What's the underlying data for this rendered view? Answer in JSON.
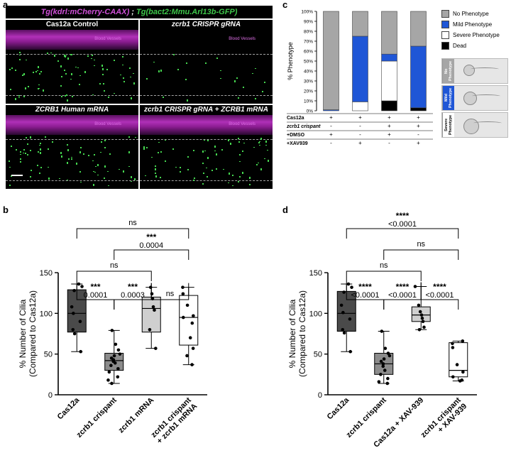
{
  "panel_labels": {
    "a": "a",
    "b": "b",
    "c": "c",
    "d": "d"
  },
  "panel_a": {
    "banner_magenta": "Tg(kdrl:mCherry-CAAX)",
    "banner_sep": " ; ",
    "banner_green": "Tg(bact2:Mmu.Arl13b-GFP)",
    "images": [
      {
        "title": "Cas12a Control",
        "vessel_label": "Blood Vessels",
        "vessel_visible": true,
        "dot_density": 0.9
      },
      {
        "title": "zcrb1 CRISPR gRNA",
        "vessel_label": "Blood Vessels",
        "vessel_visible": false,
        "dot_density": 0.25
      },
      {
        "title": "ZCRB1 Human mRNA",
        "vessel_label": "Blood Vessels",
        "vessel_visible": true,
        "dot_density": 0.85
      },
      {
        "title": "zcrb1 CRISPR gRNA + ZCRB1 mRNA",
        "vessel_label": "Blood Vessels",
        "vessel_visible": true,
        "dot_density": 0.8
      }
    ]
  },
  "colors": {
    "dark_gray": "#4a4a4a",
    "mid_gray": "#8c8c8c",
    "light_gray": "#cfcfcf",
    "white": "#ffffff",
    "no_phenotype": "#a6a6a6",
    "mild_phenotype": "#1f56d6",
    "severe_phenotype": "#ffffff",
    "dead": "#000000",
    "magenta": "#d050d8",
    "green": "#3ec84a"
  },
  "chart_data": [
    {
      "id": "c",
      "type": "bar",
      "stacked": true,
      "ylabel": "% Phenotype",
      "yticks": [
        "0%",
        "10%",
        "20%",
        "30%",
        "40%",
        "50%",
        "60%",
        "70%",
        "80%",
        "90%",
        "100%"
      ],
      "ylim": [
        0,
        100
      ],
      "series": [
        {
          "name": "Dead",
          "color": "#000000",
          "values": [
            0,
            0,
            10,
            3
          ]
        },
        {
          "name": "Severe Phenotype",
          "color": "#ffffff",
          "values": [
            0,
            9,
            40,
            0
          ]
        },
        {
          "name": "Mild Phenotype",
          "color": "#1f56d6",
          "values": [
            1,
            66,
            7,
            62
          ]
        },
        {
          "name": "No Phenotype",
          "color": "#a6a6a6",
          "values": [
            99,
            25,
            43,
            35
          ]
        }
      ],
      "legend_order": [
        "No Phenotype",
        "Mild Phenotype",
        "Severe Phenotype",
        "Dead"
      ],
      "legend_position": "right",
      "table": {
        "rows": [
          {
            "label": "Cas12a",
            "italic": false,
            "cells": [
              "+",
              "+",
              "+",
              "+"
            ]
          },
          {
            "label": "zcrb1 crispant",
            "italic": true,
            "cells": [
              "-",
              "-",
              "+",
              "+"
            ]
          },
          {
            "label": "+DMSO",
            "italic": false,
            "cells": [
              "+",
              "-",
              "+",
              "-"
            ]
          },
          {
            "label": "+XAV939",
            "italic": false,
            "cells": [
              "-",
              "+",
              "-",
              "+"
            ]
          }
        ]
      },
      "thumbnails": [
        "No Phenotype",
        "Mild Phenotype",
        "Severe Phenotype"
      ]
    },
    {
      "id": "b",
      "type": "boxplot",
      "ylabel": "% Number of Cilia\n(Compared to Cas12a)",
      "ylim": [
        0,
        150
      ],
      "yticks": [
        0,
        50,
        100,
        150
      ],
      "categories": [
        "Cas12a",
        "zcrb1 crispant",
        "zcrb1 mRNA",
        "zcrb1 crispant\n+ zcrb1 mRNA"
      ],
      "boxes": [
        {
          "min": 53,
          "q1": 77,
          "median": 100,
          "q3": 129,
          "max": 136,
          "fill": "#4a4a4a",
          "points": [
            136,
            133,
            128,
            108,
            100,
            90,
            80,
            75,
            53
          ]
        },
        {
          "min": 14,
          "q1": 30,
          "median": 42,
          "q3": 51,
          "max": 79,
          "fill": "#8c8c8c",
          "points": [
            79,
            62,
            55,
            50,
            48,
            45,
            43,
            41,
            39,
            36,
            32,
            28,
            22,
            18,
            14
          ]
        },
        {
          "min": 57,
          "q1": 77,
          "median": 106,
          "q3": 120,
          "max": 132,
          "fill": "#cfcfcf",
          "points": [
            132,
            124,
            118,
            108,
            104,
            80,
            57
          ]
        },
        {
          "min": 37,
          "q1": 61,
          "median": 95,
          "q3": 122,
          "max": 132,
          "fill": "#ffffff",
          "points": [
            132,
            124,
            110,
            97,
            95,
            88,
            70,
            57,
            48,
            37
          ]
        }
      ],
      "comparisons": [
        {
          "from": 0,
          "to": 3,
          "stars": "ns",
          "p": ""
        },
        {
          "from": 1,
          "to": 3,
          "stars": "***",
          "p": "0.0004"
        },
        {
          "from": 0,
          "to": 2,
          "stars": "ns",
          "p": ""
        },
        {
          "from": 0,
          "to": 1,
          "stars": "***",
          "p": "0.0001"
        },
        {
          "from": 1,
          "to": 2,
          "stars": "***",
          "p": "0.0003"
        },
        {
          "from": 2,
          "to": 3,
          "stars": "ns",
          "p": ""
        }
      ]
    },
    {
      "id": "d",
      "type": "boxplot",
      "ylabel": "% Number of Cilia\n(Compared to Cas12a)",
      "ylim": [
        0,
        150
      ],
      "yticks": [
        0,
        50,
        100,
        150
      ],
      "categories": [
        "Cas12a",
        "zcrb1 crispant",
        "Cas12a + XAV-939",
        "zcrb1 crispant\n+ XAV-939"
      ],
      "boxes": [
        {
          "min": 53,
          "q1": 78,
          "median": 100,
          "q3": 127,
          "max": 136,
          "fill": "#4a4a4a",
          "points": [
            136,
            132,
            126,
            110,
            101,
            93,
            80,
            76,
            53
          ]
        },
        {
          "min": 14,
          "q1": 25,
          "median": 38,
          "q3": 51,
          "max": 78,
          "fill": "#8c8c8c",
          "points": [
            78,
            57,
            51,
            48,
            44,
            41,
            38,
            35,
            30,
            25,
            20,
            16,
            14
          ]
        },
        {
          "min": 80,
          "q1": 90,
          "median": 98,
          "q3": 108,
          "max": 133,
          "fill": "#cfcfcf",
          "points": [
            133,
            110,
            102,
            98,
            94,
            90,
            83,
            80
          ]
        },
        {
          "min": 17,
          "q1": 22,
          "median": 30,
          "q3": 64,
          "max": 66,
          "fill": "#ffffff",
          "points": [
            66,
            63,
            58,
            37,
            28,
            22,
            18,
            17
          ]
        }
      ],
      "comparisons": [
        {
          "from": 0,
          "to": 3,
          "stars": "****",
          "p": "<0.0001"
        },
        {
          "from": 1,
          "to": 3,
          "stars": "ns",
          "p": ""
        },
        {
          "from": 0,
          "to": 2,
          "stars": "ns",
          "p": ""
        },
        {
          "from": 0,
          "to": 1,
          "stars": "****",
          "p": "<0.0001"
        },
        {
          "from": 1,
          "to": 2,
          "stars": "****",
          "p": "<0.0001"
        },
        {
          "from": 2,
          "to": 3,
          "stars": "****",
          "p": "<0.0001"
        }
      ]
    }
  ]
}
